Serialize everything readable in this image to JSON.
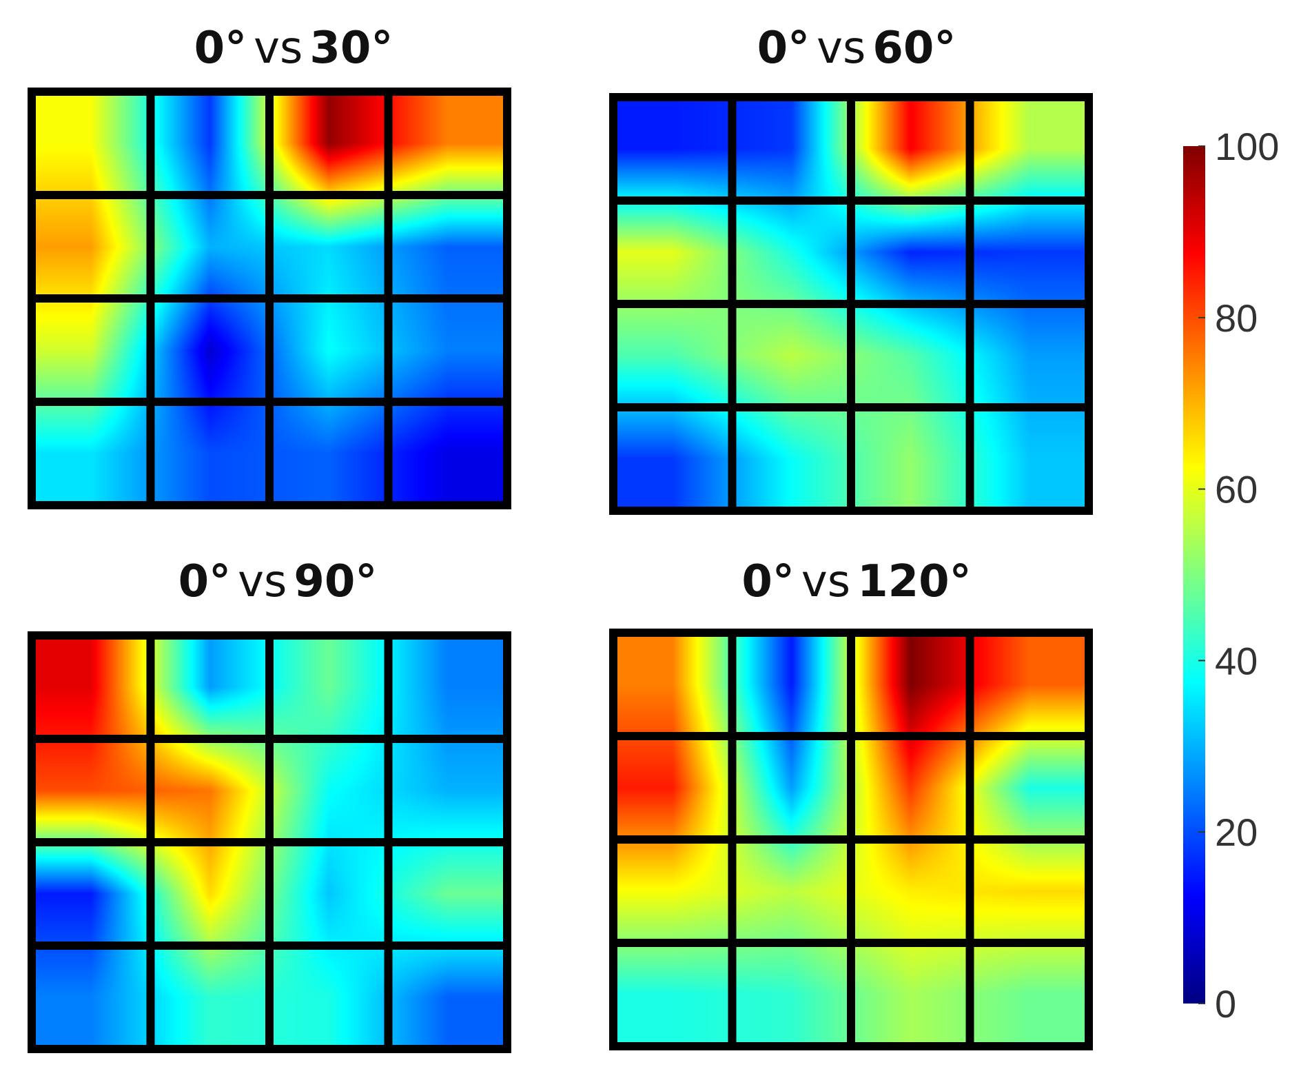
{
  "chart_data": {
    "type": "heatmap",
    "colormap": "jet",
    "colorbar": {
      "range": [
        0,
        100
      ],
      "ticks": [
        0,
        20,
        40,
        60,
        80,
        100
      ]
    },
    "grid": "4x4 cells with thick black borders",
    "panels": [
      {
        "title_bold_left": "0°",
        "title_normal": "vs",
        "title_bold_right": "30°",
        "values": [
          [
            62,
            18,
            98,
            75
          ],
          [
            72,
            30,
            34,
            22
          ],
          [
            58,
            8,
            38,
            25
          ],
          [
            35,
            20,
            22,
            10
          ]
        ]
      },
      {
        "title_bold_left": "0°",
        "title_normal": "vs",
        "title_bold_right": "60°",
        "values": [
          [
            15,
            18,
            88,
            55
          ],
          [
            60,
            40,
            16,
            18
          ],
          [
            45,
            56,
            46,
            28
          ],
          [
            18,
            38,
            52,
            32
          ]
        ]
      },
      {
        "title_bold_left": "0°",
        "title_normal": "vs",
        "title_bold_right": "90°",
        "values": [
          [
            90,
            28,
            48,
            25
          ],
          [
            80,
            76,
            38,
            30
          ],
          [
            15,
            66,
            32,
            48
          ],
          [
            25,
            42,
            40,
            22
          ]
        ]
      },
      {
        "title_bold_left": "0°",
        "title_normal": "vs",
        "title_bold_right": "120°",
        "values": [
          [
            75,
            15,
            100,
            78
          ],
          [
            85,
            28,
            82,
            40
          ],
          [
            62,
            56,
            64,
            66
          ],
          [
            40,
            42,
            54,
            48
          ]
        ]
      }
    ]
  }
}
